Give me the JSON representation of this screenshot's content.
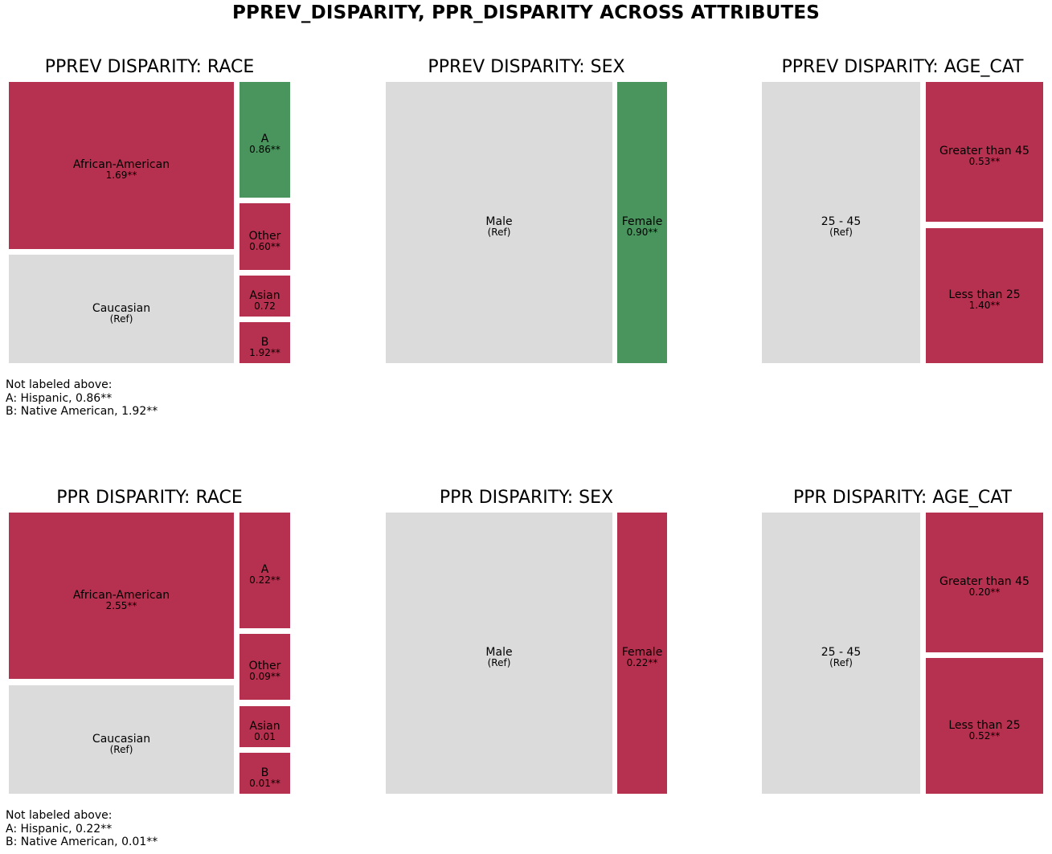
{
  "title": "PPREV_DISPARITY, PPR_DISPARITY ACROSS ATTRIBUTES",
  "colors": {
    "reference": "#dbdbdb",
    "higher": "#b6314f",
    "lower": "#4a945e"
  },
  "notes": {
    "pprev_race": [
      "Not labeled above:",
      "A: Hispanic, 0.86**",
      "B: Native American, 1.92**"
    ],
    "ppr_race": [
      "Not labeled above:",
      "A: Hispanic, 0.22**",
      "B: Native American, 0.01**"
    ]
  },
  "chart_data": [
    {
      "type": "treemap",
      "title": "PPREV DISPARITY: RACE",
      "tiles": [
        {
          "label": "African-American",
          "value_text": "1.69**",
          "value": 1.69,
          "status": "higher"
        },
        {
          "label": "Caucasian",
          "value_text": "(Ref)",
          "value": 1.0,
          "status": "reference"
        },
        {
          "label": "A",
          "value_text": "0.86**",
          "value": 0.86,
          "status": "lower"
        },
        {
          "label": "Other",
          "value_text": "0.60**",
          "value": 0.6,
          "status": "higher"
        },
        {
          "label": "Asian",
          "value_text": "0.72",
          "value": 0.72,
          "status": "higher"
        },
        {
          "label": "B",
          "value_text": "1.92**",
          "value": 1.92,
          "status": "higher"
        }
      ]
    },
    {
      "type": "treemap",
      "title": "PPREV DISPARITY: SEX",
      "tiles": [
        {
          "label": "Male",
          "value_text": "(Ref)",
          "value": 1.0,
          "status": "reference"
        },
        {
          "label": "Female",
          "value_text": "0.90**",
          "value": 0.9,
          "status": "lower"
        }
      ]
    },
    {
      "type": "treemap",
      "title": "PPREV DISPARITY: AGE_CAT",
      "tiles": [
        {
          "label": "25 - 45",
          "value_text": "(Ref)",
          "value": 1.0,
          "status": "reference"
        },
        {
          "label": "Greater than 45",
          "value_text": "0.53**",
          "value": 0.53,
          "status": "higher"
        },
        {
          "label": "Less than 25",
          "value_text": "1.40**",
          "value": 1.4,
          "status": "higher"
        }
      ]
    },
    {
      "type": "treemap",
      "title": "PPR DISPARITY: RACE",
      "tiles": [
        {
          "label": "African-American",
          "value_text": "2.55**",
          "value": 2.55,
          "status": "higher"
        },
        {
          "label": "Caucasian",
          "value_text": "(Ref)",
          "value": 1.0,
          "status": "reference"
        },
        {
          "label": "A",
          "value_text": "0.22**",
          "value": 0.22,
          "status": "higher"
        },
        {
          "label": "Other",
          "value_text": "0.09**",
          "value": 0.09,
          "status": "higher"
        },
        {
          "label": "Asian",
          "value_text": "0.01",
          "value": 0.01,
          "status": "higher"
        },
        {
          "label": "B",
          "value_text": "0.01**",
          "value": 0.01,
          "status": "higher"
        }
      ]
    },
    {
      "type": "treemap",
      "title": "PPR DISPARITY: SEX",
      "tiles": [
        {
          "label": "Male",
          "value_text": "(Ref)",
          "value": 1.0,
          "status": "reference"
        },
        {
          "label": "Female",
          "value_text": "0.22**",
          "value": 0.22,
          "status": "higher"
        }
      ]
    },
    {
      "type": "treemap",
      "title": "PPR DISPARITY: AGE_CAT",
      "tiles": [
        {
          "label": "25 - 45",
          "value_text": "(Ref)",
          "value": 1.0,
          "status": "reference"
        },
        {
          "label": "Greater than 45",
          "value_text": "0.20**",
          "value": 0.2,
          "status": "higher"
        },
        {
          "label": "Less than 25",
          "value_text": "0.52**",
          "value": 0.52,
          "status": "higher"
        }
      ]
    }
  ]
}
